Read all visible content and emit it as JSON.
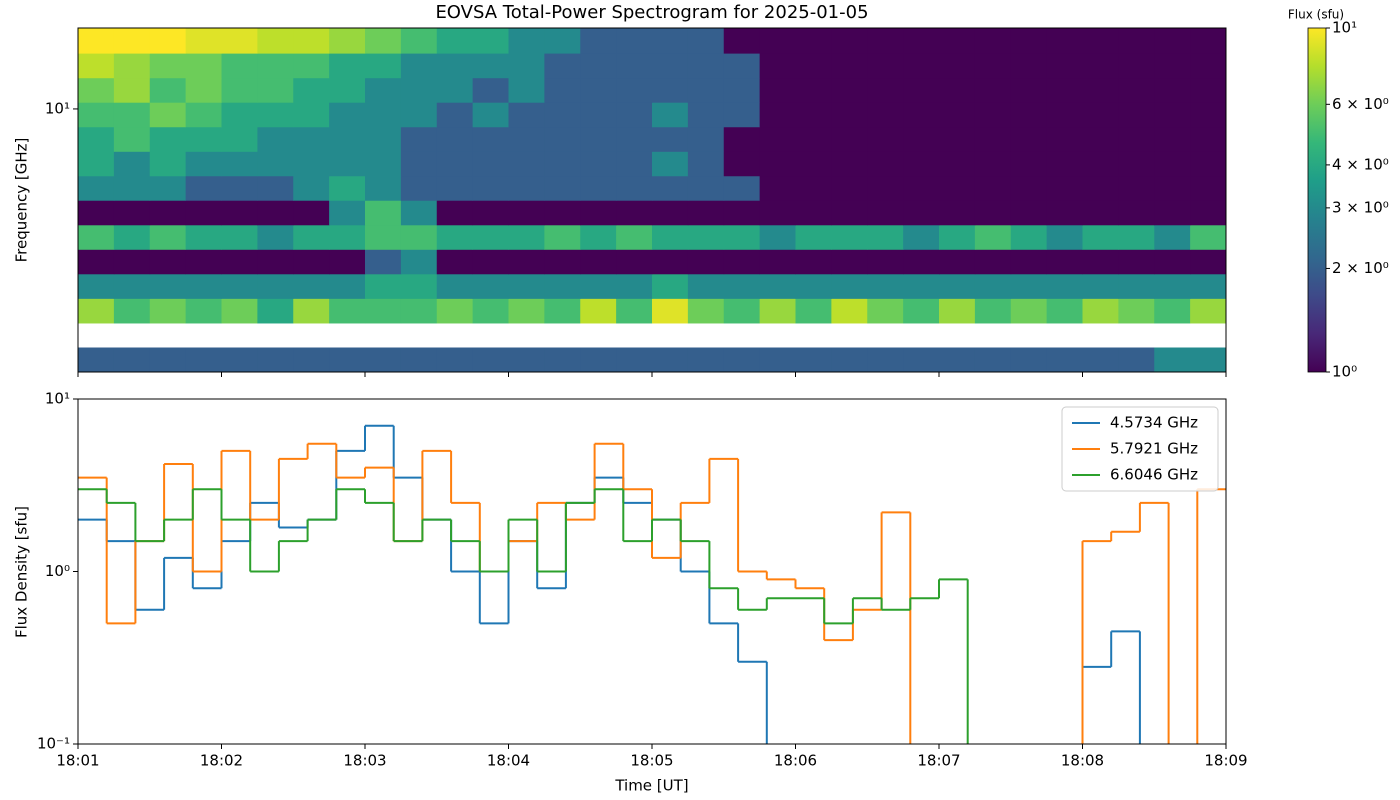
{
  "chart_data": [
    {
      "type": "heatmap",
      "title": "EOVSA Total-Power Spectrogram for 2025-01-05",
      "ylabel": "Frequency [GHz]",
      "colorbar_label": "Flux (sfu)",
      "yscale": "log",
      "ylim": [
        1.48,
        18
      ],
      "yticks": [
        {
          "value": 10,
          "label": "10¹"
        }
      ],
      "xlim": [
        1081,
        1089
      ],
      "xticks": [
        1081,
        1082,
        1083,
        1084,
        1085,
        1086,
        1087,
        1088,
        1089
      ],
      "clim": [
        1,
        10
      ],
      "cscale": "log",
      "colormap": "viridis",
      "cticks": [
        {
          "value": 1,
          "label": "10⁰"
        },
        {
          "value": 2,
          "label": "2 × 10⁰"
        },
        {
          "value": 3,
          "label": "3 × 10⁰"
        },
        {
          "value": 4,
          "label": "4 × 10⁰"
        },
        {
          "value": 6,
          "label": "6 × 10⁰"
        },
        {
          "value": 10,
          "label": "10¹"
        }
      ],
      "times": [
        1081,
        1081.25,
        1081.5,
        1081.75,
        1082,
        1082.25,
        1082.5,
        1082.75,
        1083,
        1083.25,
        1083.5,
        1083.75,
        1084,
        1084.25,
        1084.5,
        1084.75,
        1085,
        1085.25,
        1085.5,
        1085.75,
        1086,
        1086.25,
        1086.5,
        1086.75,
        1087,
        1087.25,
        1087.5,
        1087.75,
        1088,
        1088.25,
        1088.5,
        1088.75
      ],
      "frequencies": [
        1.62,
        1.93,
        2.31,
        2.76,
        3.3,
        3.94,
        4.71,
        5.63,
        6.72,
        8.03,
        9.6,
        11.47,
        13.7,
        16.4
      ],
      "values": [
        [
          2,
          2,
          2,
          2,
          2,
          2,
          2,
          2,
          2,
          2,
          2,
          2,
          2,
          2,
          2,
          2,
          2,
          2,
          2,
          2,
          2,
          2,
          2,
          2,
          2,
          2,
          2,
          2,
          2,
          2,
          3,
          3
        ],
        [
          null,
          null,
          null,
          null,
          null,
          null,
          null,
          null,
          null,
          null,
          null,
          null,
          null,
          null,
          null,
          null,
          null,
          null,
          null,
          null,
          null,
          null,
          null,
          null,
          null,
          null,
          null,
          null,
          null,
          null,
          null,
          null
        ],
        [
          7,
          5,
          6,
          5,
          6,
          4,
          7,
          5,
          5,
          5,
          6,
          5,
          6,
          5,
          8,
          5,
          9,
          6,
          5,
          7,
          5,
          8,
          6,
          5,
          7,
          5,
          6,
          5,
          7,
          6,
          5,
          7
        ],
        [
          3,
          3,
          3,
          3,
          3,
          3,
          3,
          3,
          4,
          4,
          3,
          3,
          3,
          3,
          3,
          3,
          4,
          3,
          3,
          3,
          3,
          3,
          3,
          3,
          3,
          3,
          3,
          3,
          3,
          3,
          3,
          3
        ],
        [
          1,
          1,
          1,
          1,
          1,
          1,
          1,
          1,
          2,
          3,
          1,
          1,
          1,
          1,
          1,
          1,
          1,
          1,
          1,
          1,
          1,
          1,
          1,
          1,
          1,
          1,
          1,
          1,
          1,
          1,
          1,
          1
        ],
        [
          5,
          4,
          5,
          4,
          4,
          3,
          4,
          4,
          5,
          5,
          4,
          4,
          4,
          5,
          4,
          5,
          4,
          4,
          4,
          3,
          4,
          4,
          4,
          3,
          4,
          5,
          4,
          3,
          4,
          4,
          3,
          5
        ],
        [
          1,
          1,
          1,
          1,
          1,
          1,
          1,
          3,
          5,
          3,
          1,
          1,
          1,
          1,
          1,
          1,
          1,
          1,
          1,
          1,
          1,
          1,
          1,
          1,
          1,
          1,
          1,
          1,
          1,
          1,
          1,
          1
        ],
        [
          3,
          3,
          3,
          2,
          2,
          2,
          3,
          4,
          3,
          2,
          2,
          2,
          2,
          2,
          2,
          2,
          2,
          2,
          2,
          1,
          1,
          1,
          1,
          1,
          1,
          1,
          1,
          1,
          1,
          1,
          1,
          1
        ],
        [
          4,
          3,
          4,
          3,
          3,
          3,
          3,
          3,
          3,
          2,
          2,
          2,
          2,
          2,
          2,
          2,
          3,
          2,
          1,
          1,
          1,
          1,
          1,
          1,
          1,
          1,
          1,
          1,
          1,
          1,
          1,
          1
        ],
        [
          4,
          5,
          4,
          4,
          4,
          3,
          3,
          3,
          3,
          2,
          2,
          2,
          2,
          2,
          2,
          2,
          2,
          2,
          1,
          1,
          1,
          1,
          1,
          1,
          1,
          1,
          1,
          1,
          1,
          1,
          1,
          1
        ],
        [
          5,
          5,
          6,
          5,
          4,
          4,
          4,
          3,
          3,
          3,
          2,
          3,
          2,
          2,
          2,
          2,
          3,
          2,
          2,
          1,
          1,
          1,
          1,
          1,
          1,
          1,
          1,
          1,
          1,
          1,
          1,
          1
        ],
        [
          6,
          7,
          5,
          6,
          5,
          5,
          4,
          4,
          3,
          3,
          3,
          2,
          3,
          2,
          2,
          2,
          2,
          2,
          2,
          1,
          1,
          1,
          1,
          1,
          1,
          1,
          1,
          1,
          1,
          1,
          1,
          1
        ],
        [
          8,
          7,
          6,
          6,
          5,
          5,
          5,
          4,
          4,
          3,
          3,
          3,
          3,
          2,
          2,
          2,
          2,
          2,
          2,
          1,
          1,
          1,
          1,
          1,
          1,
          1,
          1,
          1,
          1,
          1,
          1,
          1
        ],
        [
          10,
          10,
          10,
          9,
          9,
          8,
          8,
          7,
          6,
          5,
          4,
          4,
          3,
          3,
          2,
          2,
          2,
          2,
          1,
          1,
          1,
          1,
          1,
          1,
          1,
          1,
          1,
          1,
          1,
          1,
          1,
          1
        ]
      ]
    },
    {
      "type": "step",
      "xlabel": "Time [UT]",
      "ylabel": "Flux Density [sfu]",
      "yscale": "log",
      "ylim": [
        0.1,
        10
      ],
      "yticks": [
        {
          "value": 0.1,
          "label": "10⁻¹"
        },
        {
          "value": 1,
          "label": "10⁰"
        },
        {
          "value": 10,
          "label": "10¹"
        }
      ],
      "xlim": [
        1081,
        1089
      ],
      "xticks": [
        {
          "value": 1081,
          "label": "18:01"
        },
        {
          "value": 1082,
          "label": "18:02"
        },
        {
          "value": 1083,
          "label": "18:03"
        },
        {
          "value": 1084,
          "label": "18:04"
        },
        {
          "value": 1085,
          "label": "18:05"
        },
        {
          "value": 1086,
          "label": "18:06"
        },
        {
          "value": 1087,
          "label": "18:07"
        },
        {
          "value": 1088,
          "label": "18:08"
        },
        {
          "value": 1089,
          "label": "18:09"
        }
      ],
      "legend": "upper right",
      "x": [
        1081,
        1081.2,
        1081.4,
        1081.6,
        1081.8,
        1082,
        1082.2,
        1082.4,
        1082.6,
        1082.8,
        1083,
        1083.2,
        1083.4,
        1083.6,
        1083.8,
        1084,
        1084.2,
        1084.4,
        1084.6,
        1084.8,
        1085,
        1085.2,
        1085.4,
        1085.6,
        1085.8,
        1086,
        1086.2,
        1086.4,
        1086.6,
        1086.8,
        1087,
        1087.2,
        1087.4,
        1087.6,
        1087.8,
        1088,
        1088.2,
        1088.4,
        1088.6,
        1088.8
      ],
      "series": [
        {
          "name": "4.5734 GHz",
          "color": "#1f77b4",
          "values": [
            2.0,
            1.5,
            0.6,
            1.2,
            0.8,
            1.5,
            2.5,
            1.8,
            2.0,
            5.0,
            7.0,
            3.5,
            2.0,
            1.0,
            0.5,
            1.5,
            0.8,
            2.5,
            3.5,
            2.5,
            2.0,
            1.0,
            0.5,
            0.3,
            null,
            null,
            null,
            null,
            null,
            null,
            null,
            null,
            null,
            null,
            null,
            0.28,
            0.45,
            null,
            null,
            null
          ]
        },
        {
          "name": "5.7921 GHz",
          "color": "#ff7f0e",
          "values": [
            3.5,
            0.5,
            1.5,
            4.2,
            1.0,
            5.0,
            2.0,
            4.5,
            5.5,
            3.5,
            4.0,
            1.5,
            5.0,
            2.5,
            1.0,
            1.5,
            2.5,
            2.0,
            5.5,
            3.0,
            1.2,
            2.5,
            4.5,
            1.0,
            0.9,
            0.8,
            0.4,
            0.6,
            2.2,
            null,
            null,
            null,
            null,
            null,
            null,
            1.5,
            1.7,
            2.5,
            null,
            3.0
          ]
        },
        {
          "name": "6.6046 GHz",
          "color": "#2ca02c",
          "values": [
            3.0,
            2.5,
            1.5,
            2.0,
            3.0,
            2.0,
            1.0,
            1.5,
            2.0,
            3.0,
            2.5,
            1.5,
            2.0,
            1.5,
            1.0,
            2.0,
            1.0,
            2.5,
            3.0,
            1.5,
            2.0,
            1.5,
            0.8,
            0.6,
            0.7,
            0.7,
            0.5,
            0.7,
            0.6,
            0.7,
            0.9,
            null,
            null,
            null,
            null,
            null,
            null,
            null,
            null,
            null
          ]
        }
      ]
    }
  ]
}
